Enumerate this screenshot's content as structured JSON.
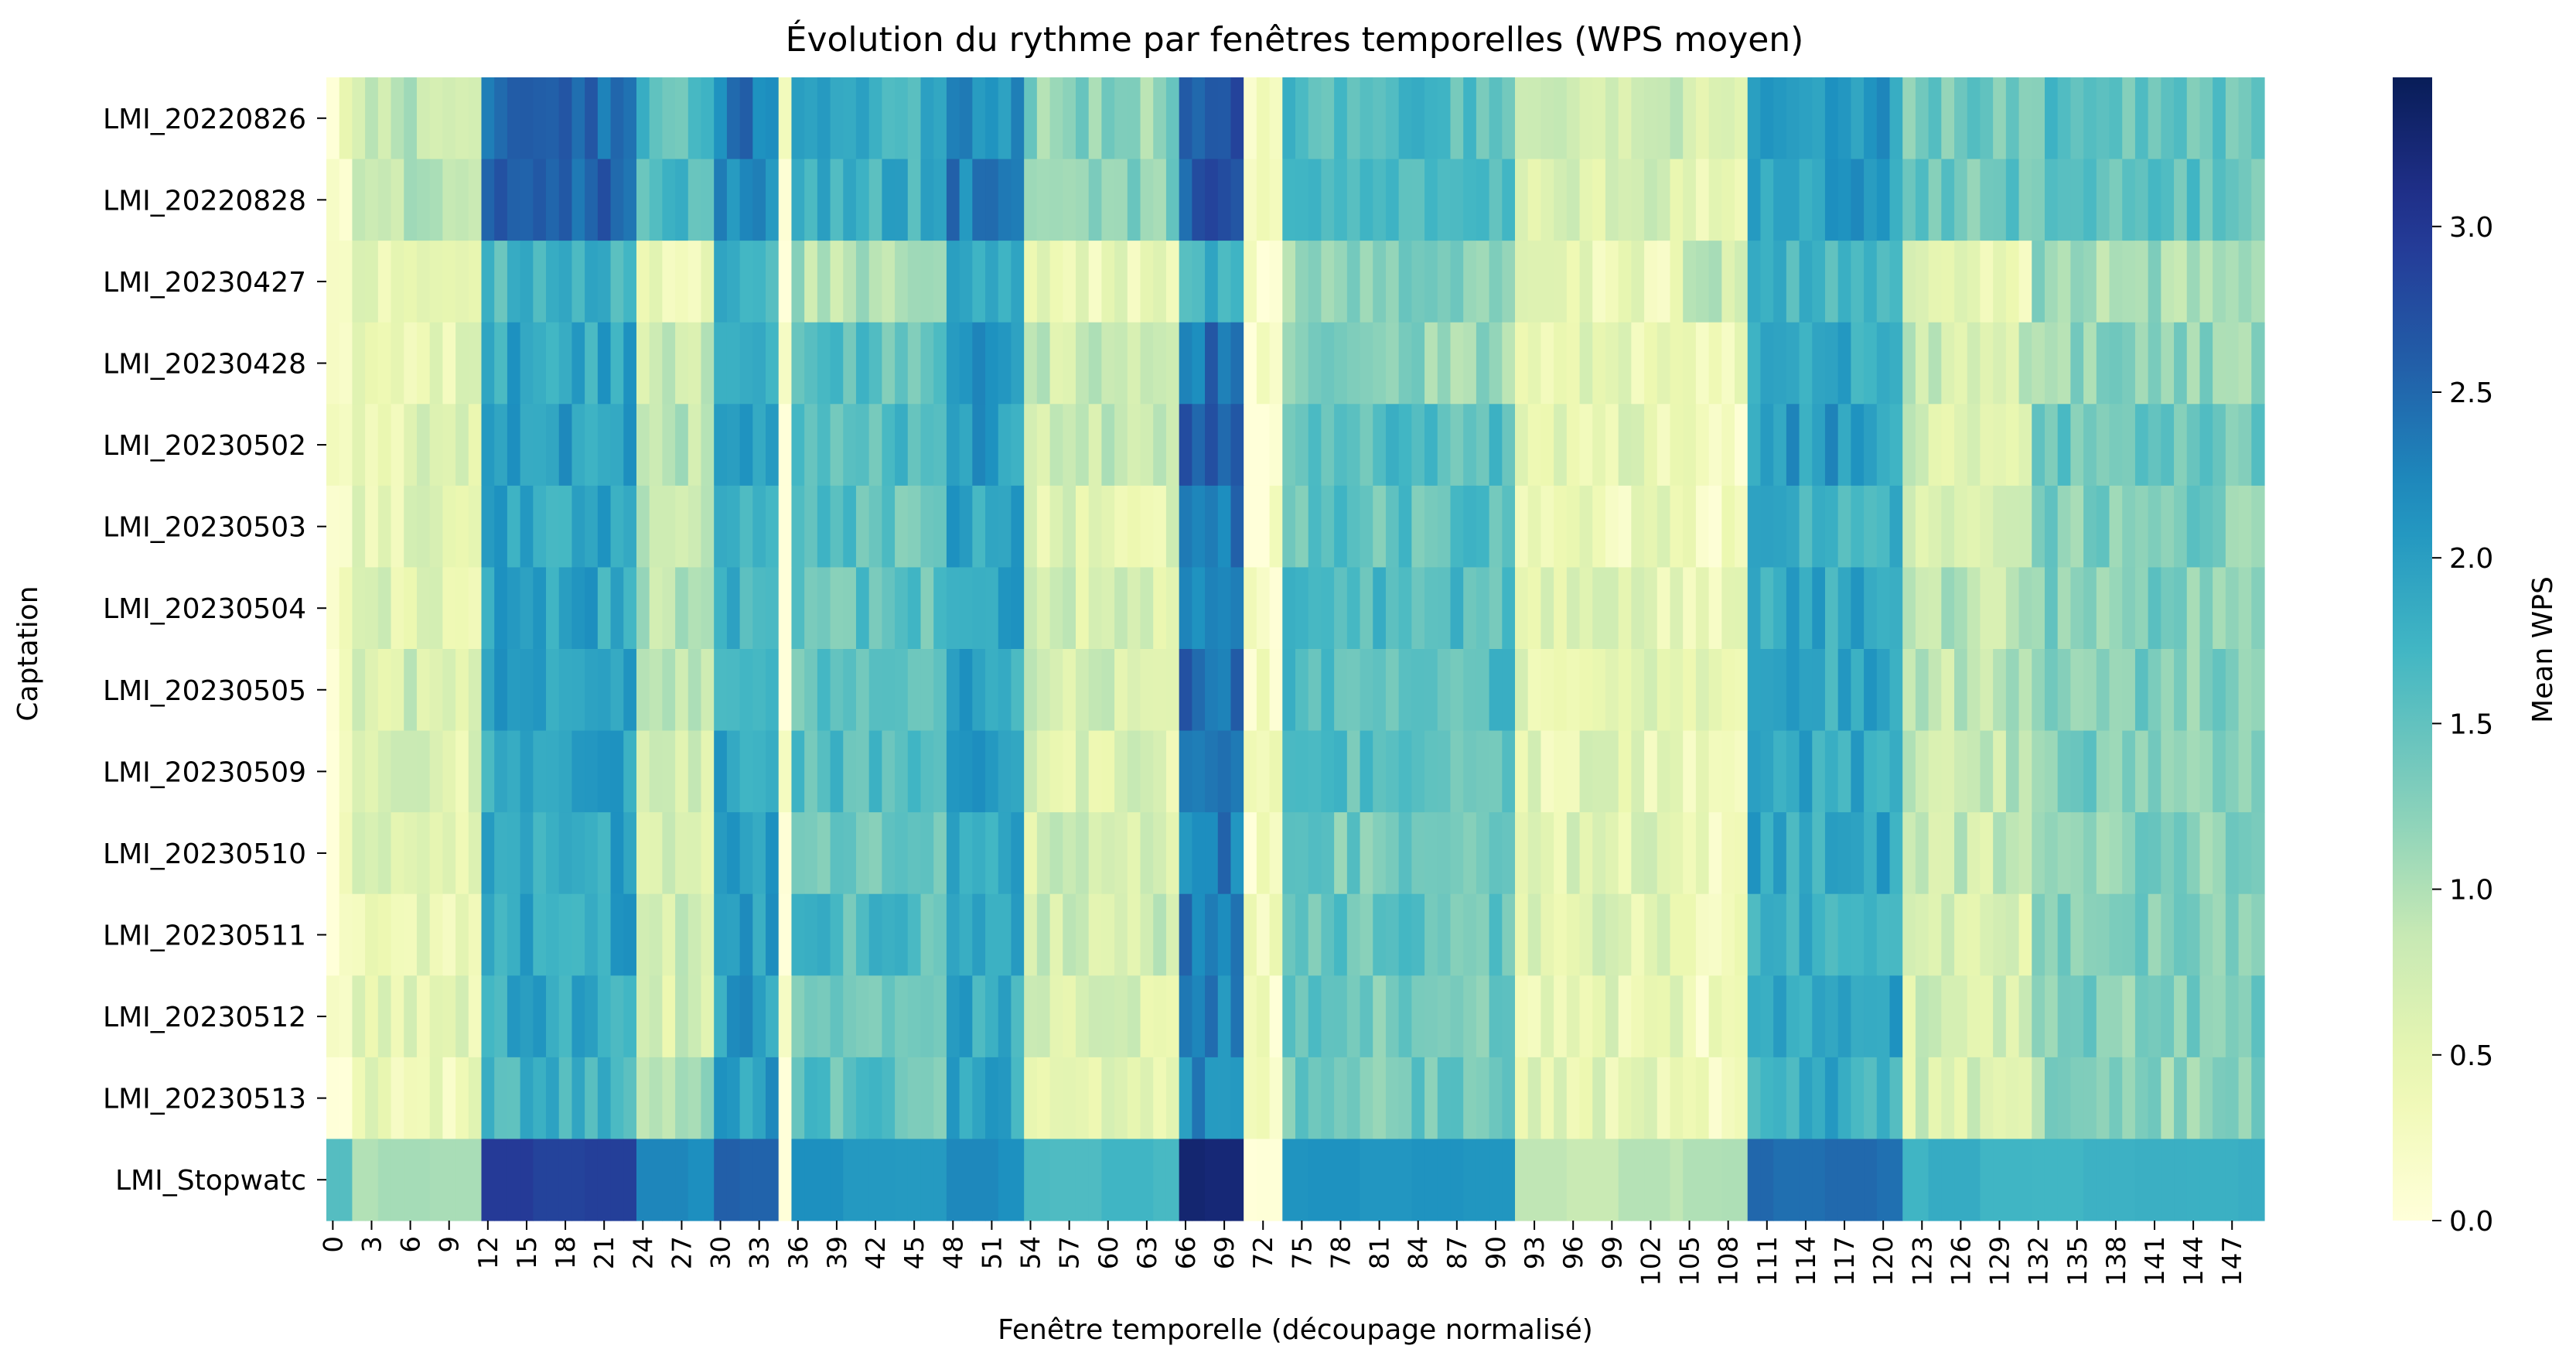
{
  "chart_data": {
    "type": "heatmap",
    "title": "Évolution du rythme par fenêtres temporelles (WPS moyen)",
    "xlabel": "Fenêtre temporelle (découpage normalisé)",
    "ylabel": "Captation",
    "colorbar_label": "Mean WPS",
    "colormap": "YlGnBu",
    "vmin": 0,
    "vmax": 3.45,
    "colorbar_ticks": [
      "0.0",
      "0.5",
      "1.0",
      "1.5",
      "2.0",
      "2.5",
      "3.0"
    ],
    "colorbar_tick_values": [
      0,
      0.5,
      1.0,
      1.5,
      2.0,
      2.5,
      3.0
    ],
    "x_count": 150,
    "x_tick_labels": [
      "0",
      "3",
      "6",
      "9",
      "12",
      "15",
      "18",
      "21",
      "24",
      "27",
      "30",
      "33",
      "36",
      "39",
      "42",
      "45",
      "48",
      "51",
      "54",
      "57",
      "60",
      "63",
      "66",
      "69",
      "72",
      "75",
      "78",
      "81",
      "84",
      "87",
      "90",
      "93",
      "96",
      "99",
      "102",
      "105",
      "108",
      "111",
      "114",
      "117",
      "120",
      "123",
      "126",
      "129",
      "132",
      "135",
      "138",
      "141",
      "144",
      "147"
    ],
    "rows": [
      "LMI_20220826",
      "LMI_20220828",
      "LMI_20230427",
      "LMI_20230428",
      "LMI_20230502",
      "LMI_20230503",
      "LMI_20230504",
      "LMI_20230505",
      "LMI_20230509",
      "LMI_20230510",
      "LMI_20230511",
      "LMI_20230512",
      "LMI_20230513",
      "LMI_Stopwatc"
    ],
    "segment_profiles": [
      {
        "start": 0,
        "end": 1,
        "levels": [
          0.3,
          0.3,
          0.05,
          0.1,
          0.1,
          0.1,
          0.1,
          0.1,
          0.1,
          0.1,
          0.1,
          0.1,
          0.1,
          1.6
        ]
      },
      {
        "start": 2,
        "end": 11,
        "levels": [
          0.9,
          0.9,
          0.5,
          0.45,
          0.55,
          0.5,
          0.6,
          0.7,
          0.6,
          0.6,
          0.5,
          0.5,
          0.4,
          1.0
        ]
      },
      {
        "start": 12,
        "end": 23,
        "levels": [
          2.5,
          2.6,
          1.7,
          1.9,
          2.0,
          1.9,
          1.9,
          2.0,
          1.9,
          1.9,
          1.9,
          1.9,
          1.7,
          2.9
        ]
      },
      {
        "start": 24,
        "end": 29,
        "levels": [
          1.6,
          1.7,
          0.4,
          0.8,
          0.9,
          0.8,
          1.0,
          0.9,
          0.7,
          0.7,
          0.7,
          0.7,
          1.0,
          2.2
        ]
      },
      {
        "start": 30,
        "end": 34,
        "levels": [
          2.4,
          2.3,
          1.8,
          1.9,
          2.0,
          1.8,
          1.8,
          1.9,
          1.9,
          2.1,
          2.0,
          2.0,
          2.0,
          2.6
        ]
      },
      {
        "start": 35,
        "end": 35,
        "levels": [
          0.1,
          0.1,
          0.1,
          0.1,
          0.1,
          0.1,
          0.1,
          0.1,
          0.1,
          0.1,
          0.1,
          0.1,
          0.1,
          0.0
        ]
      },
      {
        "start": 36,
        "end": 47,
        "levels": [
          1.8,
          1.8,
          1.0,
          1.5,
          1.6,
          1.5,
          1.5,
          1.5,
          1.6,
          1.4,
          1.6,
          1.5,
          1.5,
          2.1
        ]
      },
      {
        "start": 48,
        "end": 53,
        "levels": [
          2.2,
          2.3,
          1.8,
          2.0,
          2.0,
          1.9,
          2.0,
          1.9,
          2.1,
          1.9,
          2.0,
          1.9,
          1.9,
          2.2
        ]
      },
      {
        "start": 54,
        "end": 65,
        "levels": [
          1.2,
          1.3,
          0.4,
          0.8,
          0.8,
          0.6,
          0.7,
          0.7,
          0.6,
          0.7,
          0.8,
          0.6,
          0.6,
          1.7
        ]
      },
      {
        "start": 66,
        "end": 70,
        "levels": [
          2.6,
          2.7,
          1.8,
          2.4,
          2.7,
          2.3,
          2.4,
          2.5,
          2.3,
          2.3,
          2.4,
          2.3,
          2.2,
          3.3
        ]
      },
      {
        "start": 71,
        "end": 73,
        "levels": [
          0.3,
          0.3,
          0.1,
          0.1,
          0.1,
          0.1,
          0.2,
          0.2,
          0.2,
          0.2,
          0.2,
          0.2,
          0.2,
          0.0
        ]
      },
      {
        "start": 74,
        "end": 91,
        "levels": [
          1.6,
          1.7,
          1.2,
          1.2,
          1.6,
          1.5,
          1.6,
          1.6,
          1.5,
          1.4,
          1.5,
          1.4,
          1.4,
          2.1
        ]
      },
      {
        "start": 92,
        "end": 104,
        "levels": [
          0.7,
          0.7,
          0.4,
          0.5,
          0.5,
          0.4,
          0.5,
          0.5,
          0.5,
          0.6,
          0.6,
          0.5,
          0.5,
          0.9
        ]
      },
      {
        "start": 105,
        "end": 109,
        "levels": [
          0.4,
          0.4,
          0.8,
          0.3,
          0.3,
          0.3,
          0.4,
          0.4,
          0.4,
          0.3,
          0.3,
          0.3,
          0.3,
          1.0
        ]
      },
      {
        "start": 110,
        "end": 121,
        "levels": [
          2.0,
          2.0,
          1.7,
          1.9,
          2.0,
          1.8,
          1.9,
          1.9,
          1.9,
          1.9,
          1.8,
          1.9,
          1.8,
          2.5
        ]
      },
      {
        "start": 122,
        "end": 131,
        "levels": [
          1.4,
          1.4,
          0.5,
          0.8,
          0.7,
          0.6,
          0.9,
          0.9,
          0.9,
          0.8,
          0.7,
          0.7,
          0.7,
          1.8
        ]
      },
      {
        "start": 132,
        "end": 149,
        "levels": [
          1.5,
          1.5,
          1.1,
          1.2,
          1.4,
          1.3,
          1.3,
          1.3,
          1.3,
          1.3,
          1.3,
          1.3,
          1.2,
          1.8
        ]
      }
    ],
    "grid": false,
    "legend": "colorbar-right"
  }
}
